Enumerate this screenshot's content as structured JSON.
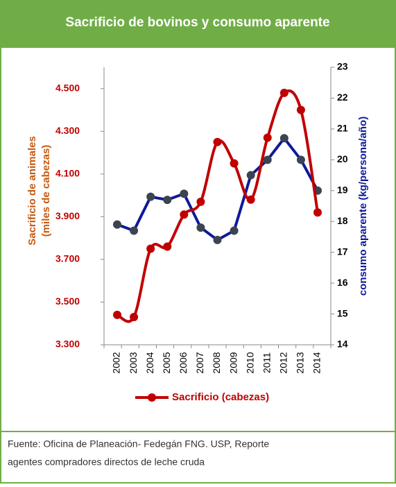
{
  "chart_data": {
    "type": "line",
    "title": "Sacrificio de bovinos y consumo aparente",
    "y_label": [
      "Sacrificio de animales",
      "(miles de cabezas)"
    ],
    "y2_label": "consumo aparente (kg/persona/año)",
    "categories": [
      "2002",
      "2003",
      "2004",
      "2005",
      "2006",
      "2007",
      "2008",
      "2009",
      "2010",
      "2011",
      "2012",
      "2013",
      "2014"
    ],
    "series": [
      {
        "name": "Sacrificio (cabezas)",
        "color": "#c00000",
        "marker_color": "#c00000",
        "smooth": true,
        "axis": "y",
        "values": [
          3440,
          3430,
          3750,
          3760,
          3910,
          3970,
          4250,
          4150,
          3980,
          4270,
          4480,
          4400,
          3920
        ]
      },
      {
        "color": "#0d1a99",
        "marker_color": "#3b4450",
        "smooth": false,
        "axis": "y2",
        "values": [
          17.9,
          17.7,
          18.8,
          18.7,
          18.9,
          17.8,
          17.4,
          17.7,
          19.5,
          20.0,
          20.7,
          20.0,
          19.0
        ]
      }
    ],
    "ylim": [
      3300,
      4600
    ],
    "yticks": [
      {
        "value": 3300,
        "label": "3.300"
      },
      {
        "value": 3500,
        "label": "3.500"
      },
      {
        "value": 3700,
        "label": "3.700"
      },
      {
        "value": 3900,
        "label": "3.900"
      },
      {
        "value": 4100,
        "label": "4.100"
      },
      {
        "value": 4300,
        "label": "4.300"
      },
      {
        "value": 4500,
        "label": "4.500"
      }
    ],
    "y2lim": [
      14,
      23
    ],
    "y2ticks": [
      14,
      15,
      16,
      17,
      18,
      19,
      20,
      21,
      22,
      23
    ],
    "legend": "bottom",
    "source": [
      "Fuente: Oficina de Planeación- Fedegán FNG.  USP, Reporte",
      "agentes compradores directos de leche cruda"
    ]
  }
}
